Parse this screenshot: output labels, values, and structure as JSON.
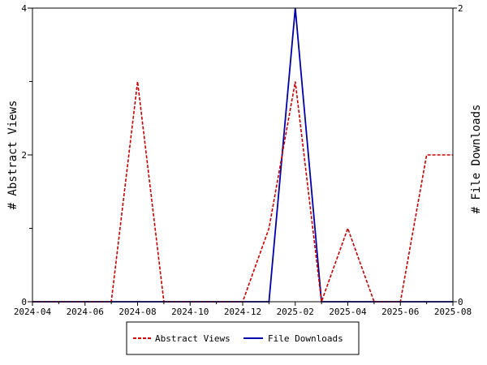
{
  "chart_data": {
    "type": "line",
    "x": [
      "2024-04",
      "2024-05",
      "2024-06",
      "2024-07",
      "2024-08",
      "2024-09",
      "2024-10",
      "2024-11",
      "2024-12",
      "2025-01",
      "2025-02",
      "2025-03",
      "2025-04",
      "2025-05",
      "2025-06",
      "2025-07",
      "2025-08"
    ],
    "x_tick_labels": [
      "2024-04",
      "2024-06",
      "2024-08",
      "2024-10",
      "2024-12",
      "2025-02",
      "2025-04",
      "2025-06",
      "2025-08"
    ],
    "series": [
      {
        "name": "Abstract Views",
        "axis": "left",
        "color": "#cc0000",
        "dash": "dashed",
        "values": [
          0,
          0,
          0,
          0,
          3,
          0,
          0,
          0,
          0,
          1,
          3,
          0,
          1,
          0,
          0,
          2,
          2
        ]
      },
      {
        "name": "File Downloads",
        "axis": "right",
        "color": "#0000aa",
        "dash": "solid",
        "values": [
          0,
          0,
          0,
          0,
          0,
          0,
          0,
          0,
          0,
          0,
          2,
          0,
          0,
          0,
          0,
          0,
          0
        ]
      }
    ],
    "ylabel_left": "# Abstract Views",
    "ylabel_right": "# File Downloads",
    "ylim_left": [
      0,
      4
    ],
    "ylim_right": [
      0,
      2
    ],
    "y_ticks_left": [
      "0",
      "2",
      "4"
    ],
    "y_ticks_right": [
      "0",
      "2"
    ],
    "grid": false,
    "legend_position": "bottom"
  }
}
